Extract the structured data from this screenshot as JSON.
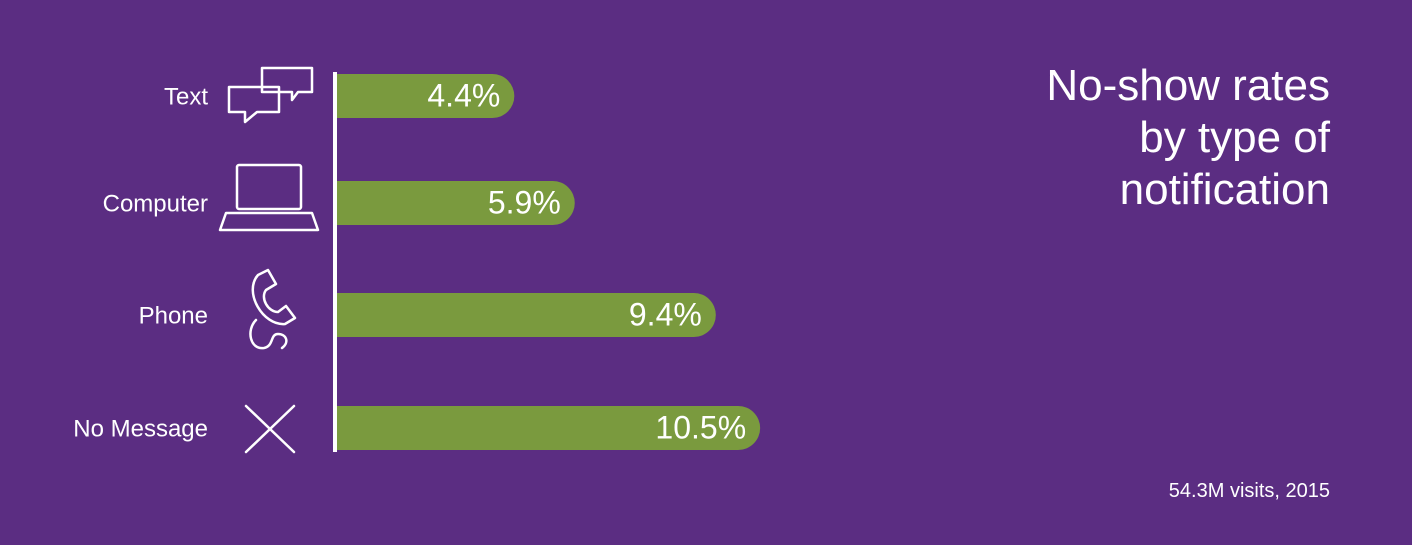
{
  "chart_data": {
    "type": "bar",
    "orientation": "horizontal",
    "title": "No-show rates by type of notification",
    "note": "54.3M visits, 2015",
    "categories": [
      "Text",
      "Computer",
      "Phone",
      "No Message"
    ],
    "values": [
      4.4,
      5.9,
      9.4,
      10.5
    ],
    "value_labels": [
      "4.4%",
      "5.9%",
      "9.4%",
      "10.5%"
    ],
    "color": "#7a9a3e"
  }
}
